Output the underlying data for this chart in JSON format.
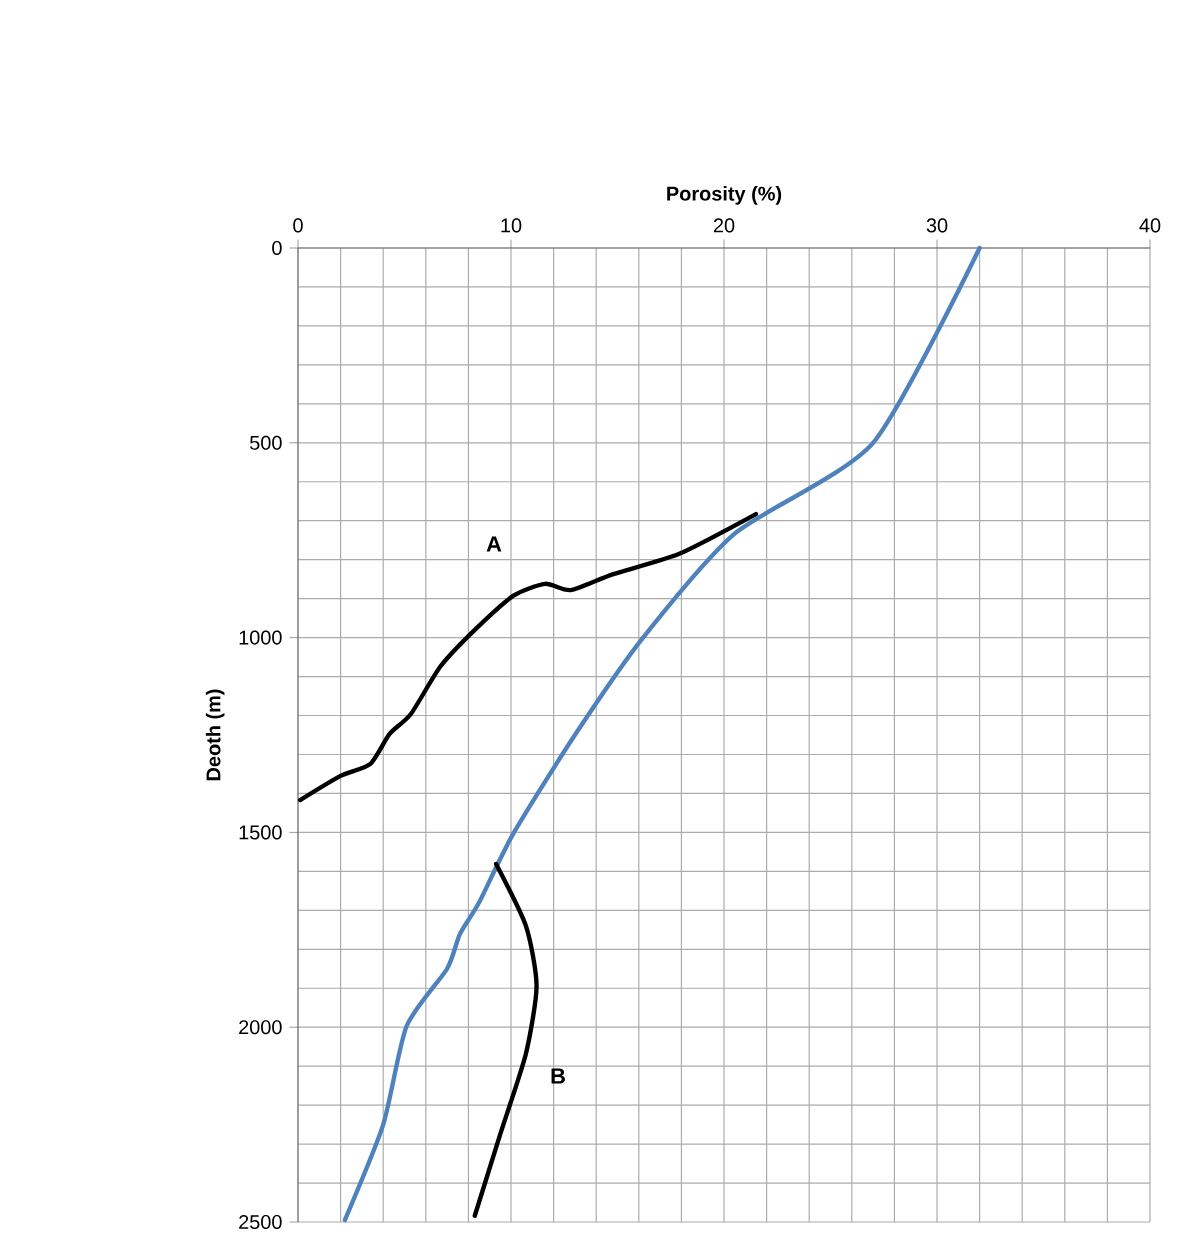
{
  "chart_data": {
    "type": "line",
    "xlabel": "Porosity (%)",
    "ylabel": "Deoth (m)",
    "xlim": [
      0,
      40
    ],
    "xticks": [
      0,
      10,
      20,
      30,
      40
    ],
    "ylim": [
      2500,
      0
    ],
    "yticks": [
      0,
      500,
      1000,
      1500,
      2000,
      2500
    ],
    "grid": true,
    "marker": "none",
    "line_style": "solid",
    "series": [
      {
        "color": "#4f81bd",
        "x": [
          32,
          27,
          20.5,
          16.2,
          13,
          10.1,
          8.5,
          7.6,
          7,
          5.1,
          4,
          2.2
        ],
        "values": [
          0,
          500,
          733,
          1000,
          1250,
          1504,
          1680,
          1761,
          1850,
          1997,
          2250,
          2495
        ]
      },
      {
        "color": "#000000",
        "x": [
          21.5,
          17.9,
          14.8,
          12.8,
          11.6,
          10.1,
          8.3,
          6.7,
          5.3,
          4.3,
          3.4,
          2.0,
          0.1
        ],
        "values": [
          683,
          785,
          837,
          878,
          862,
          893,
          980,
          1073,
          1196,
          1247,
          1324,
          1355,
          1417
        ]
      },
      {
        "color": "#000000",
        "x": [
          9.3,
          10.7,
          11.2,
          10.7,
          9.5,
          8.3
        ],
        "values": [
          1581,
          1740,
          1894,
          2068,
          2274,
          2484
        ]
      }
    ],
    "annotations": [
      "A",
      "B"
    ]
  }
}
